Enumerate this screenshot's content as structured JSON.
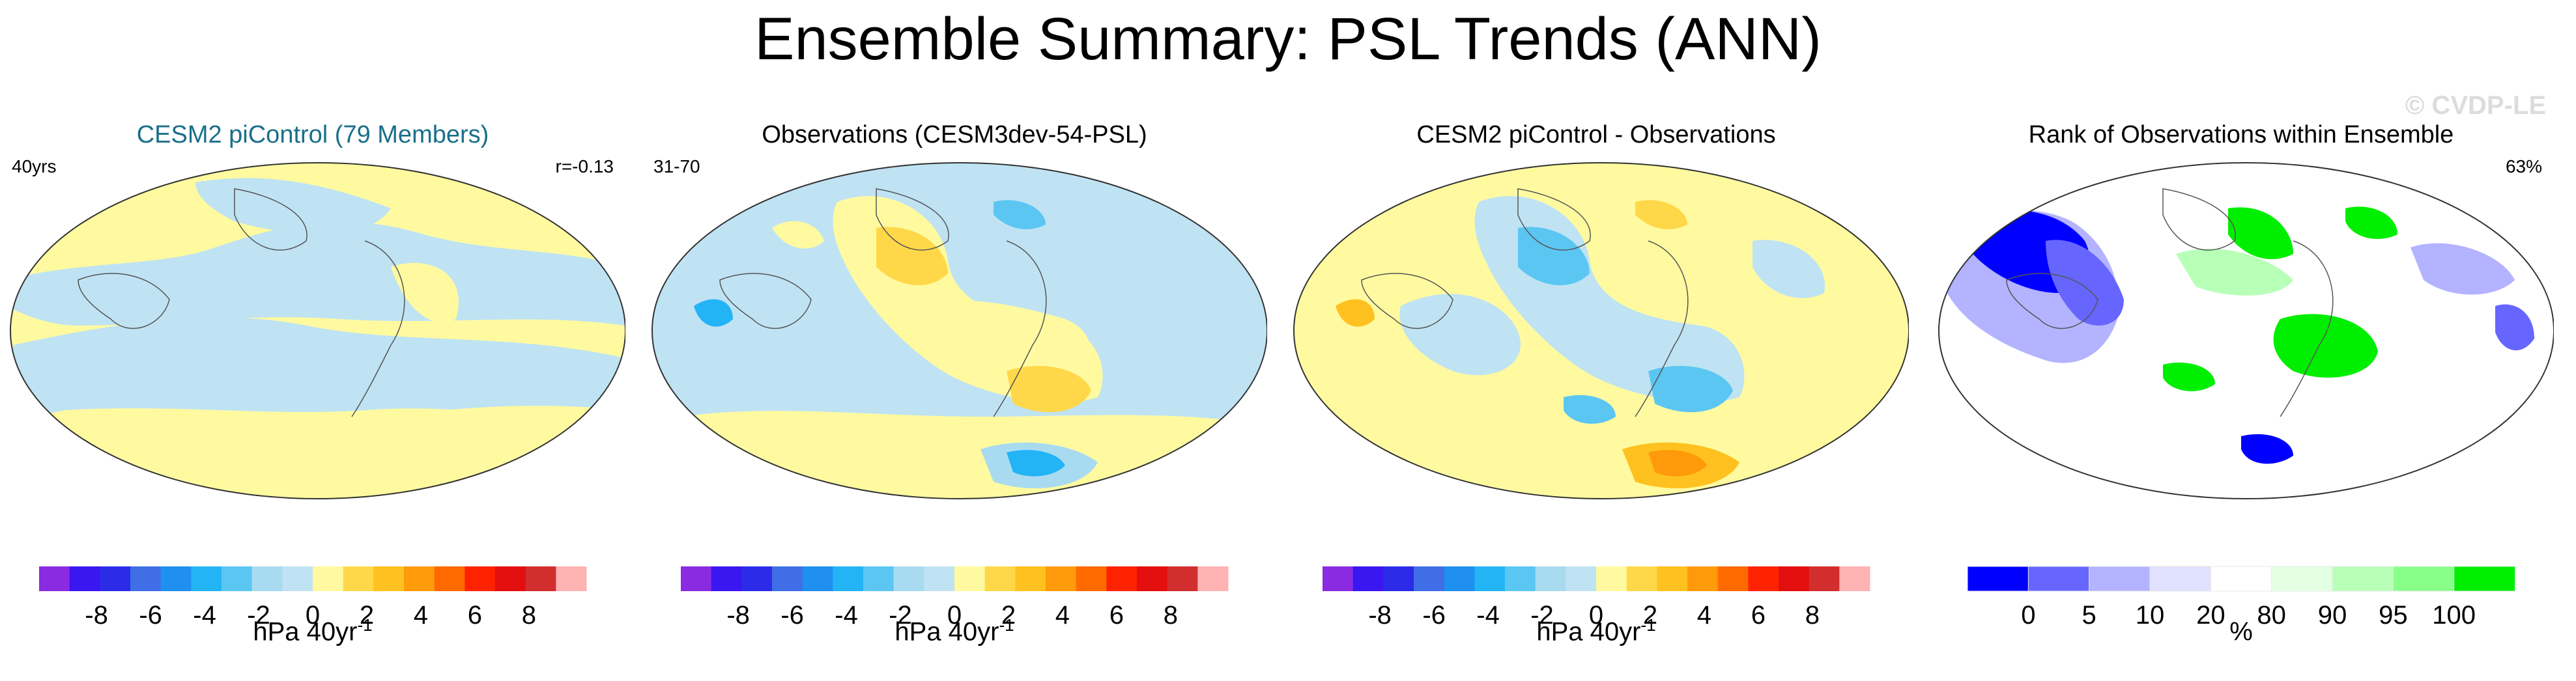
{
  "title": "Ensemble Summary: PSL Trends (ANN)",
  "watermark": "© CVDP-LE",
  "colors": {
    "diverging": [
      "#8a2be2",
      "#3a16f0",
      "#2b2be8",
      "#3f6ee6",
      "#1f8ff0",
      "#23b4f5",
      "#5cc6f2",
      "#a9dbf0",
      "#bfe3f3",
      "#fffaa0",
      "#ffd84a",
      "#ffc11f",
      "#ff9a0a",
      "#ff6a00",
      "#ff2200",
      "#e30e0e",
      "#d22e2e",
      "#ffb3b3"
    ],
    "rank": [
      "#0000ff",
      "#6666ff",
      "#b3b3ff",
      "#e0e0ff",
      "#ffffff",
      "#e3ffe3",
      "#b8ffb8",
      "#88ff88",
      "#00ee00"
    ]
  },
  "panels": [
    {
      "title": "CESM2 piControl (79 Members)",
      "left_label": "40yrs",
      "right_label": "r=-0.13"
    },
    {
      "title": "Observations (CESM3dev-54-PSL)",
      "left_label": "31-70",
      "right_label": ""
    },
    {
      "title": "CESM2 piControl - Observations",
      "left_label": "",
      "right_label": ""
    },
    {
      "title": "Rank of Observations within Ensemble",
      "left_label": "",
      "right_label": "63%"
    }
  ],
  "chart_data": [
    {
      "type": "heatmap",
      "title": "CESM2 piControl (79 Members)",
      "colorbar": {
        "levels": [
          -9,
          -8,
          -7,
          -6,
          -5,
          -4,
          -3,
          -2,
          -1,
          0,
          1,
          2,
          3,
          4,
          5,
          6,
          7,
          8,
          9
        ],
        "tick_labels": [
          "-8",
          "-6",
          "-4",
          "-2",
          "0",
          "2",
          "4",
          "6",
          "8"
        ],
        "units_text": "hPa 40yr",
        "units_exp": "-1"
      },
      "pattern_correlation": -0.13,
      "trend_length": "40yrs"
    },
    {
      "type": "heatmap",
      "title": "Observations (CESM3dev-54-PSL)",
      "colorbar": {
        "levels": [
          -9,
          -8,
          -7,
          -6,
          -5,
          -4,
          -3,
          -2,
          -1,
          0,
          1,
          2,
          3,
          4,
          5,
          6,
          7,
          8,
          9
        ],
        "tick_labels": [
          "-8",
          "-6",
          "-4",
          "-2",
          "0",
          "2",
          "4",
          "6",
          "8"
        ],
        "units_text": "hPa 40yr",
        "units_exp": "-1"
      },
      "years": "31-70"
    },
    {
      "type": "heatmap",
      "title": "CESM2 piControl - Observations",
      "colorbar": {
        "levels": [
          -9,
          -8,
          -7,
          -6,
          -5,
          -4,
          -3,
          -2,
          -1,
          0,
          1,
          2,
          3,
          4,
          5,
          6,
          7,
          8,
          9
        ],
        "tick_labels": [
          "-8",
          "-6",
          "-4",
          "-2",
          "0",
          "2",
          "4",
          "6",
          "8"
        ],
        "units_text": "hPa 40yr",
        "units_exp": "-1"
      }
    },
    {
      "type": "heatmap",
      "title": "Rank of Observations within Ensemble",
      "colorbar": {
        "levels": [
          0,
          5,
          10,
          20,
          80,
          90,
          95,
          100
        ],
        "tick_labels": [
          "0",
          "5",
          "10",
          "20",
          "80",
          "90",
          "95",
          "100"
        ],
        "units_text": "%",
        "units_exp": ""
      },
      "percent_within": "63%"
    }
  ]
}
